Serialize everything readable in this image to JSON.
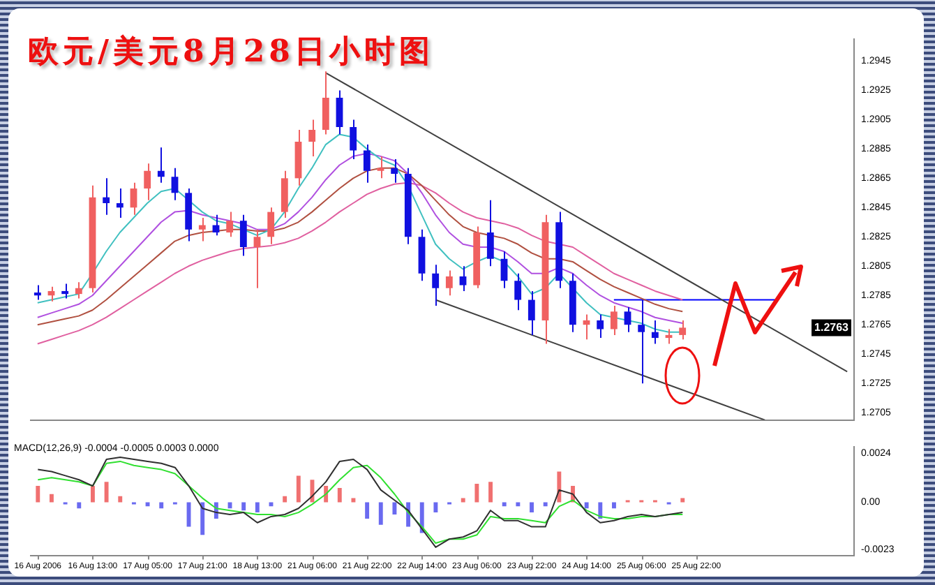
{
  "chart_data": [
    {
      "type": "candlestick",
      "title": "欧元/美元8月28日小时图",
      "categories": [
        null,
        null,
        null,
        null,
        null,
        null,
        null,
        null,
        null,
        null,
        null,
        null,
        null,
        null,
        null,
        null,
        null,
        null,
        null,
        null,
        null,
        null,
        null,
        null,
        null,
        null,
        null,
        null,
        null,
        null,
        null,
        null,
        null,
        null,
        null,
        null,
        null,
        null,
        null,
        null,
        null,
        null,
        null,
        null,
        null,
        null,
        null,
        null,
        null,
        null,
        null,
        null,
        null,
        null,
        null,
        null,
        null,
        null,
        null,
        null
      ],
      "ohlc": [
        [
          1.2787,
          1.2792,
          1.2782,
          1.2785
        ],
        [
          1.2785,
          1.2791,
          1.2781,
          1.2788
        ],
        [
          1.2788,
          1.2793,
          1.2783,
          1.2786
        ],
        [
          1.2786,
          1.2794,
          1.2783,
          1.279
        ],
        [
          1.279,
          1.286,
          1.2787,
          1.2852
        ],
        [
          1.2852,
          1.2865,
          1.284,
          1.2848
        ],
        [
          1.2848,
          1.2858,
          1.2838,
          1.2845
        ],
        [
          1.2845,
          1.2862,
          1.284,
          1.2858
        ],
        [
          1.2858,
          1.2875,
          1.285,
          1.287
        ],
        [
          1.287,
          1.2886,
          1.2862,
          1.2866
        ],
        [
          1.2866,
          1.2872,
          1.285,
          1.2855
        ],
        [
          1.2855,
          1.2858,
          1.2822,
          1.283
        ],
        [
          1.283,
          1.2838,
          1.2822,
          1.2833
        ],
        [
          1.2833,
          1.284,
          1.2826,
          1.2828
        ],
        [
          1.2828,
          1.2842,
          1.2825,
          1.2836
        ],
        [
          1.2836,
          1.284,
          1.2812,
          1.2818
        ],
        [
          1.2818,
          1.283,
          1.279,
          1.2825
        ],
        [
          1.2825,
          1.2845,
          1.282,
          1.2842
        ],
        [
          1.2842,
          1.287,
          1.2838,
          1.2865
        ],
        [
          1.2865,
          1.2898,
          1.286,
          1.289
        ],
        [
          1.289,
          1.2905,
          1.288,
          1.2898
        ],
        [
          1.2898,
          1.2938,
          1.2895,
          1.292
        ],
        [
          1.292,
          1.2925,
          1.2895,
          1.29
        ],
        [
          1.29,
          1.2905,
          1.2878,
          1.2884
        ],
        [
          1.2884,
          1.2888,
          1.2862,
          1.287
        ],
        [
          1.287,
          1.288,
          1.2865,
          1.2872
        ],
        [
          1.2872,
          1.2878,
          1.2862,
          1.2868
        ],
        [
          1.2868,
          1.2872,
          1.282,
          1.2825
        ],
        [
          1.2825,
          1.283,
          1.2795,
          1.28
        ],
        [
          1.28,
          1.2806,
          1.2778,
          1.279
        ],
        [
          1.279,
          1.2802,
          1.2785,
          1.2798
        ],
        [
          1.2798,
          1.2805,
          1.2788,
          1.2792
        ],
        [
          1.2792,
          1.2832,
          1.279,
          1.2828
        ],
        [
          1.2828,
          1.285,
          1.2805,
          1.281
        ],
        [
          1.281,
          1.2815,
          1.279,
          1.2795
        ],
        [
          1.2795,
          1.28,
          1.2775,
          1.2782
        ],
        [
          1.2782,
          1.2788,
          1.2758,
          1.2768
        ],
        [
          1.2768,
          1.284,
          1.2752,
          1.2835
        ],
        [
          1.2835,
          1.2842,
          1.279,
          1.2795
        ],
        [
          1.2795,
          1.28,
          1.276,
          1.2765
        ],
        [
          1.2765,
          1.2772,
          1.2755,
          1.2768
        ],
        [
          1.2768,
          1.2772,
          1.2756,
          1.2762
        ],
        [
          1.2762,
          1.2778,
          1.2758,
          1.2774
        ],
        [
          1.2774,
          1.2777,
          1.276,
          1.2765
        ],
        [
          1.2765,
          1.2782,
          1.2725,
          1.276
        ],
        [
          1.276,
          1.2768,
          1.2752,
          1.2756
        ],
        [
          1.2756,
          1.2762,
          1.2752,
          1.2758
        ],
        [
          1.2758,
          1.2768,
          1.2755,
          1.2763
        ],
        null,
        null,
        null,
        null,
        null,
        null,
        null,
        null,
        null,
        null,
        null,
        null
      ],
      "colors": [
        "#1010e0",
        "#f06060",
        "#1010e0",
        "#f06060",
        "#f06060",
        "#1010e0",
        "#1010e0",
        "#f06060",
        "#f06060",
        "#1010e0",
        "#1010e0",
        "#1010e0",
        "#f06060",
        "#1010e0",
        "#f06060",
        "#1010e0",
        "#f06060",
        "#f06060",
        "#f06060",
        "#f06060",
        "#f06060",
        "#f06060",
        "#1010e0",
        "#1010e0",
        "#1010e0",
        "#f06060",
        "#1010e0",
        "#1010e0",
        "#1010e0",
        "#1010e0",
        "#f06060",
        "#1010e0",
        "#f06060",
        "#1010e0",
        "#1010e0",
        "#1010e0",
        "#1010e0",
        "#f06060",
        "#1010e0",
        "#1010e0",
        "#f06060",
        "#1010e0",
        "#f06060",
        "#1010e0",
        "#1010e0",
        "#1010e0",
        "#f06060",
        "#f06060",
        null,
        null,
        null,
        null,
        null,
        null,
        null,
        null,
        null,
        null,
        null,
        null
      ],
      "series": [
        {
          "type": "line",
          "color": "#40c0c0",
          "values": [
            1.278,
            1.2782,
            1.2784,
            1.2786,
            1.28,
            1.2815,
            1.2828,
            1.2838,
            1.2848,
            1.2856,
            1.2858,
            1.285,
            1.2842,
            1.2836,
            1.2834,
            1.283,
            1.2826,
            1.283,
            1.2842,
            1.2858,
            1.2872,
            1.2888,
            1.2895,
            1.2893,
            1.2885,
            1.2878,
            1.2874,
            1.286,
            1.284,
            1.282,
            1.281,
            1.2803,
            1.2808,
            1.2812,
            1.2808,
            1.2798,
            1.2786,
            1.279,
            1.28,
            1.279,
            1.278,
            1.2772,
            1.277,
            1.2768,
            1.2766,
            1.2762,
            1.276,
            1.276,
            null,
            null,
            null,
            null,
            null,
            null,
            null,
            null,
            null,
            null,
            null,
            null
          ]
        },
        {
          "type": "line",
          "color": "#b050e0",
          "values": [
            1.277,
            1.2773,
            1.2776,
            1.2779,
            1.2785,
            1.2795,
            1.2805,
            1.2815,
            1.2825,
            1.2835,
            1.2842,
            1.2843,
            1.284,
            1.2838,
            1.2836,
            1.2834,
            1.283,
            1.283,
            1.2834,
            1.2842,
            1.2852,
            1.2864,
            1.2874,
            1.288,
            1.2882,
            1.288,
            1.2877,
            1.2868,
            1.2855,
            1.284,
            1.2828,
            1.282,
            1.2818,
            1.2818,
            1.2815,
            1.2808,
            1.28,
            1.28,
            1.2804,
            1.28,
            1.2792,
            1.2785,
            1.278,
            1.2777,
            1.2774,
            1.277,
            1.2768,
            1.2766,
            null,
            null,
            null,
            null,
            null,
            null,
            null,
            null,
            null,
            null,
            null,
            null
          ]
        },
        {
          "type": "line",
          "color": "#b05040",
          "values": [
            1.2765,
            1.2767,
            1.2769,
            1.2771,
            1.2775,
            1.2782,
            1.279,
            1.2798,
            1.2806,
            1.2814,
            1.2822,
            1.2826,
            1.2828,
            1.2829,
            1.283,
            1.283,
            1.2829,
            1.2829,
            1.2831,
            1.2835,
            1.2842,
            1.285,
            1.2858,
            1.2865,
            1.287,
            1.2872,
            1.2872,
            1.2868,
            1.286,
            1.285,
            1.284,
            1.2832,
            1.2828,
            1.2826,
            1.2824,
            1.282,
            1.2814,
            1.281,
            1.281,
            1.2808,
            1.2802,
            1.2796,
            1.2791,
            1.2787,
            1.2783,
            1.2779,
            1.2776,
            1.2774,
            null,
            null,
            null,
            null,
            null,
            null,
            null,
            null,
            null,
            null,
            null,
            null
          ]
        },
        {
          "type": "line",
          "color": "#e060a0",
          "values": [
            1.2752,
            1.2755,
            1.2758,
            1.2761,
            1.2765,
            1.277,
            1.2776,
            1.2782,
            1.2788,
            1.2794,
            1.28,
            1.2805,
            1.2809,
            1.2812,
            1.2815,
            1.2817,
            1.2818,
            1.2819,
            1.2821,
            1.2824,
            1.2829,
            1.2835,
            1.2842,
            1.2848,
            1.2854,
            1.2858,
            1.2861,
            1.2862,
            1.286,
            1.2855,
            1.2848,
            1.2842,
            1.2838,
            1.2836,
            1.2834,
            1.2831,
            1.2826,
            1.2822,
            1.282,
            1.2818,
            1.2812,
            1.2806,
            1.28,
            1.2796,
            1.2792,
            1.2788,
            1.2785,
            1.2782,
            null,
            null,
            null,
            null,
            null,
            null,
            null,
            null,
            null,
            null,
            null,
            null
          ]
        },
        {
          "type": "line",
          "color": "#404040",
          "values": [
            null,
            null,
            null,
            null,
            null,
            null,
            null,
            null,
            null,
            null,
            null,
            null,
            null,
            null,
            null,
            null,
            null,
            null,
            null,
            null,
            null,
            1.2937,
            null,
            null,
            null,
            null,
            null,
            null,
            null,
            null,
            null,
            null,
            null,
            null,
            null,
            null,
            null,
            null,
            null,
            null,
            null,
            null,
            null,
            null,
            null,
            null,
            null,
            null,
            null,
            null,
            null,
            null,
            null,
            null,
            null,
            null,
            null,
            null,
            null,
            1.2733
          ]
        },
        {
          "type": "line",
          "color": "#404040",
          "values": [
            null,
            null,
            null,
            null,
            null,
            null,
            null,
            null,
            null,
            null,
            null,
            null,
            null,
            null,
            null,
            null,
            null,
            null,
            null,
            null,
            null,
            null,
            null,
            null,
            null,
            null,
            null,
            null,
            null,
            1.2782,
            null,
            null,
            null,
            null,
            null,
            null,
            null,
            null,
            null,
            null,
            null,
            null,
            null,
            null,
            null,
            null,
            null,
            null,
            null,
            null,
            null,
            null,
            null,
            1.27,
            null,
            null,
            null,
            null,
            null,
            null
          ]
        },
        {
          "type": "line",
          "color": "#0000ff",
          "values": [
            null,
            null,
            null,
            null,
            null,
            null,
            null,
            null,
            null,
            null,
            null,
            null,
            null,
            null,
            null,
            null,
            null,
            null,
            null,
            null,
            null,
            null,
            null,
            null,
            null,
            null,
            null,
            null,
            null,
            null,
            null,
            null,
            null,
            null,
            null,
            null,
            null,
            null,
            null,
            null,
            null,
            null,
            1.2782,
            null,
            null,
            null,
            null,
            null,
            null,
            null,
            null,
            null,
            null,
            null,
            1.2782,
            null,
            null,
            null,
            null,
            null
          ]
        }
      ],
      "ylim": [
        1.27,
        1.296
      ],
      "yticks": [
        1.2705,
        1.2725,
        1.2745,
        1.2765,
        1.2785,
        1.2805,
        1.2825,
        1.2845,
        1.2865,
        1.2885,
        1.2905,
        1.2925,
        1.2945
      ],
      "annotations": [
        {
          "text": "1.2763",
          "y": 1.2763
        }
      ],
      "legend": false,
      "grid": false
    },
    {
      "type": "bar",
      "title": "MACD(12,26,9) -0.0004 -0.0005 0.0003 0.0000",
      "categories": [
        "16 Aug 2006",
        null,
        null,
        null,
        "16 Aug 13:00",
        null,
        null,
        null,
        "17 Aug 05:00",
        null,
        null,
        null,
        "17 Aug 21:00",
        null,
        null,
        null,
        "18 Aug 13:00",
        null,
        null,
        null,
        "21 Aug 06:00",
        null,
        null,
        null,
        "21 Aug 22:00",
        null,
        null,
        null,
        "22 Aug 14:00",
        null,
        null,
        null,
        "23 Aug 06:00",
        null,
        null,
        null,
        "23 Aug 22:00",
        null,
        null,
        null,
        "24 Aug 14:00",
        null,
        null,
        null,
        "25 Aug 06:00",
        null,
        null,
        null,
        "25 Aug 22:00",
        null,
        null,
        null,
        null,
        null,
        null,
        null,
        null,
        null,
        null,
        null
      ],
      "series": [
        {
          "type": "bar",
          "values": [
            0.0008,
            0.0004,
            -0.0001,
            -0.0003,
            0.0008,
            0.001,
            0.0003,
            -0.0001,
            -0.0002,
            -0.0003,
            -0.0001,
            -0.0012,
            -0.0016,
            -0.0008,
            -0.0003,
            -0.0004,
            -0.0005,
            -0.0002,
            0.0003,
            0.0013,
            0.0011,
            0.0008,
            0.0007,
            0.0002,
            -0.0008,
            -0.0011,
            -0.0006,
            -0.0012,
            -0.0015,
            -0.0005,
            -0.0001,
            0.0002,
            0.0009,
            0.001,
            -0.0002,
            -0.0002,
            -0.0005,
            -0.0002,
            0.0015,
            0.0008,
            -0.0003,
            -0.0008,
            -0.0003,
            0.0001,
            0.0001,
            0.0001,
            -0.0001,
            0.0002,
            null,
            null,
            null,
            null,
            null,
            null,
            null,
            null,
            null,
            null,
            null,
            null
          ],
          "colors": [
            "#f07070",
            "#f07070",
            "#6a6af0",
            "#6a6af0",
            "#f07070",
            "#f07070",
            "#f07070",
            "#6a6af0",
            "#6a6af0",
            "#6a6af0",
            "#6a6af0",
            "#6a6af0",
            "#6a6af0",
            "#6a6af0",
            "#6a6af0",
            "#6a6af0",
            "#6a6af0",
            "#6a6af0",
            "#f07070",
            "#f07070",
            "#f07070",
            "#f07070",
            "#f07070",
            "#f07070",
            "#6a6af0",
            "#6a6af0",
            "#6a6af0",
            "#6a6af0",
            "#6a6af0",
            "#6a6af0",
            "#6a6af0",
            "#f07070",
            "#f07070",
            "#f07070",
            "#6a6af0",
            "#6a6af0",
            "#6a6af0",
            "#6a6af0",
            "#f07070",
            "#f07070",
            "#6a6af0",
            "#6a6af0",
            "#6a6af0",
            "#f07070",
            "#f07070",
            "#f07070",
            "#6a6af0",
            "#f07070",
            null,
            null,
            null,
            null,
            null,
            null,
            null,
            null,
            null,
            null,
            null,
            null
          ]
        },
        {
          "type": "line",
          "color": "#303030",
          "values": [
            0.0016,
            0.0015,
            0.0013,
            0.0011,
            0.0008,
            0.0021,
            0.0022,
            0.0021,
            0.002,
            0.0019,
            0.0017,
            0.0008,
            -0.0003,
            -0.0005,
            -0.0006,
            -0.0005,
            -0.001,
            -0.0007,
            -0.0006,
            -0.0003,
            0.0003,
            0.001,
            0.002,
            0.0021,
            0.0016,
            0.0006,
            0.0001,
            -0.0004,
            -0.0013,
            -0.0022,
            -0.0018,
            -0.0017,
            -0.0014,
            -0.0004,
            -0.0009,
            -0.0009,
            -0.0012,
            -0.0012,
            0.0006,
            0.0004,
            -0.0005,
            -0.001,
            -0.0009,
            -0.0007,
            -0.0006,
            -0.0007,
            -0.0006,
            -0.0005,
            null,
            null,
            null,
            null,
            null,
            null,
            null,
            null,
            null,
            null,
            null,
            null
          ]
        },
        {
          "type": "line",
          "color": "#30e030",
          "values": [
            0.0011,
            0.0012,
            0.0011,
            0.001,
            0.0008,
            0.0019,
            0.002,
            0.0018,
            0.0017,
            0.0016,
            0.0014,
            0.0008,
            0.0002,
            -0.0003,
            -0.0004,
            -0.0005,
            -0.0006,
            -0.0006,
            -0.0007,
            -0.0005,
            -0.0001,
            0.0004,
            0.0011,
            0.0017,
            0.0018,
            0.0012,
            0.0004,
            -0.0005,
            -0.0012,
            -0.002,
            -0.0018,
            -0.0018,
            -0.0016,
            -0.0007,
            -0.0008,
            -0.0008,
            -0.0009,
            -0.001,
            -0.0002,
            0.0001,
            -0.0004,
            -0.0007,
            -0.0008,
            -0.0008,
            -0.0007,
            -0.0007,
            -0.0006,
            -0.0006,
            null,
            null,
            null,
            null,
            null,
            null,
            null,
            null,
            null,
            null,
            null,
            null
          ]
        }
      ],
      "ylim": [
        -0.0026,
        0.0027
      ],
      "yticks": [
        0.0024,
        {
          "value": 0,
          "label": "0.00"
        },
        -0.0023
      ],
      "legend": false,
      "grid": false
    }
  ]
}
